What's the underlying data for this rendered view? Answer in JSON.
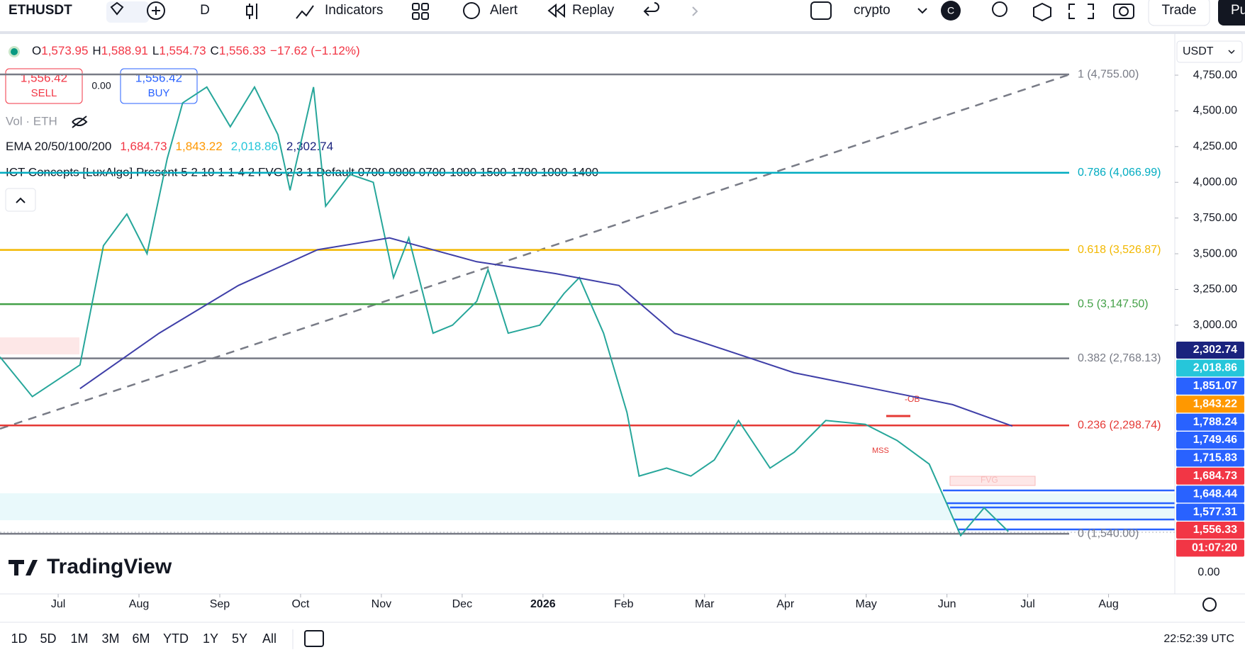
{
  "toolbar": {
    "symbol": "ETHUSDT",
    "interval": "D",
    "indicators": "Indicators",
    "alert": "Alert",
    "replay": "Replay",
    "layout": "crypto",
    "avatar": "C",
    "trade": "Trade",
    "publish": "Pu"
  },
  "legend": {
    "ohlc": [
      {
        "key": "O",
        "value": "1,573.95"
      },
      {
        "key": "H",
        "value": "1,588.91"
      },
      {
        "key": "L",
        "value": "1,554.73"
      },
      {
        "key": "C",
        "value": "1,556.33"
      }
    ],
    "change": "−17.62 (−1.12%)",
    "sell_price": "1,556.42",
    "sell": "SELL",
    "spread": "0.00",
    "buy_price": "1,556.42",
    "buy": "BUY",
    "volume": "Vol · ETH",
    "ema_title": "EMA 20/50/100/200",
    "ema_values": [
      {
        "text": "1,684.73",
        "color": "#f23645"
      },
      {
        "text": "1,843.22",
        "color": "#ff9800"
      },
      {
        "text": "2,018.86",
        "color": "#26c6da"
      },
      {
        "text": "2,302.74",
        "color": "#1a237e"
      }
    ],
    "ict": "ICT Concepts [LuxAlgo] Present 5 2 10 1 1 4 2 FVG 2 3 1 Default 0700-0900 0700-1000 1500-1700 1000-1400"
  },
  "currency": "USDT",
  "chart_data": {
    "type": "line",
    "xlim": [
      -0.72,
      13.82
    ],
    "ylim": [
      1139,
      5028
    ],
    "xticks": [
      {
        "value": 0,
        "label": "Jul"
      },
      {
        "value": 1,
        "label": "Aug"
      },
      {
        "value": 2,
        "label": "Sep"
      },
      {
        "value": 3,
        "label": "Oct"
      },
      {
        "value": 4,
        "label": "Nov"
      },
      {
        "value": 5,
        "label": "Dec"
      },
      {
        "value": 6,
        "label": "2026"
      },
      {
        "value": 7,
        "label": "Feb"
      },
      {
        "value": 8,
        "label": "Mar"
      },
      {
        "value": 9,
        "label": "Apr"
      },
      {
        "value": 10,
        "label": "May"
      },
      {
        "value": 11,
        "label": "Jun"
      },
      {
        "value": 12,
        "label": "Jul"
      },
      {
        "value": 13,
        "label": "Aug"
      }
    ],
    "yticks": [
      {
        "value": 4750,
        "label": "4,750.00"
      },
      {
        "value": 4500,
        "label": "4,500.00"
      },
      {
        "value": 4250,
        "label": "4,250.00"
      },
      {
        "value": 4000,
        "label": "4,000.00"
      },
      {
        "value": 3750,
        "label": "3,750.00"
      },
      {
        "value": 3500,
        "label": "3,500.00"
      },
      {
        "value": 3250,
        "label": "3,250.00"
      },
      {
        "value": 3000,
        "label": "3,000.00"
      }
    ],
    "series": [
      {
        "color": "#26a69a",
        "x": [
          -0.72,
          -0.32,
          0.27,
          0.56,
          0.85,
          1.1,
          1.35,
          1.54,
          1.84,
          2.13,
          2.43,
          2.72,
          2.87,
          3.16,
          3.31,
          3.61,
          3.9,
          4.15,
          4.34,
          4.64,
          4.88,
          5.18,
          5.32,
          5.57,
          5.96,
          6.26,
          6.45,
          6.75,
          7.04,
          7.19,
          7.53,
          7.83,
          8.12,
          8.42,
          8.81,
          9.11,
          9.5,
          9.99,
          10.38,
          10.78,
          11.02,
          11.17,
          11.46,
          11.76
        ],
        "values": [
          2778,
          2500,
          2722,
          3556,
          3778,
          3500,
          4167,
          4556,
          4667,
          4389,
          4667,
          4333,
          3944,
          4667,
          3833,
          4056,
          4000,
          3333,
          3611,
          2944,
          3000,
          3167,
          3389,
          2944,
          3000,
          3222,
          3333,
          2944,
          2389,
          1944,
          2000,
          1944,
          2056,
          2333,
          2000,
          2111,
          2333,
          2306,
          2194,
          2028,
          1722,
          1528,
          1722,
          1556
        ]
      },
      {
        "color": "#3f3fa8",
        "x": [
          0.27,
          1.25,
          2.23,
          3.21,
          4.1,
          5.18,
          6.16,
          6.94,
          7.63,
          9.11,
          10.09,
          11.07,
          11.81
        ],
        "values": [
          2556,
          2944,
          3278,
          3528,
          3611,
          3444,
          3361,
          3278,
          2944,
          2667,
          2556,
          2444,
          2294
        ]
      }
    ],
    "fib_levels": [
      {
        "label": "1 (4,755.00)",
        "value": 4755,
        "color": "#787b86"
      },
      {
        "label": "0.786 (4,066.99)",
        "value": 4066.99,
        "color": "#00acc1"
      },
      {
        "label": "0.618 (3,526.87)",
        "value": 3526.87,
        "color": "#f2b800"
      },
      {
        "label": "0.5 (3,147.50)",
        "value": 3147.5,
        "color": "#43a047"
      },
      {
        "label": "0.382 (2,768.13)",
        "value": 2768.13,
        "color": "#787b86"
      },
      {
        "label": "0.236 (2,298.74)",
        "value": 2298.74,
        "color": "#e53935"
      },
      {
        "label": "0 (1,540.00)",
        "value": 1540,
        "color": "#787b86"
      }
    ]
  },
  "price_tags": [
    {
      "label": "2,302.74",
      "color": "#1a237e"
    },
    {
      "label": "2,018.86",
      "color": "#26c6da"
    },
    {
      "label": "1,851.07",
      "color": "#2962ff"
    },
    {
      "label": "1,843.22",
      "color": "#ff9800"
    },
    {
      "label": "1,788.24",
      "color": "#2962ff"
    },
    {
      "label": "1,749.46",
      "color": "#2962ff"
    },
    {
      "label": "1,715.83",
      "color": "#2962ff"
    },
    {
      "label": "1,684.73",
      "color": "#f23645"
    },
    {
      "label": "1,648.44",
      "color": "#2962ff"
    },
    {
      "label": "1,577.31",
      "color": "#2962ff"
    },
    {
      "label": "1,556.33",
      "color": "#f23645"
    },
    {
      "label": "01:07:20",
      "color": "#f23645"
    }
  ],
  "volume_axis_label": "0.00",
  "annotations": {
    "ob": "-OB",
    "mss": "MSS",
    "fvg": "FVG"
  },
  "brand": "TradingView",
  "ranges": [
    "1D",
    "5D",
    "1M",
    "3M",
    "6M",
    "YTD",
    "1Y",
    "5Y",
    "All"
  ],
  "clock": "22:52:39 UTC"
}
